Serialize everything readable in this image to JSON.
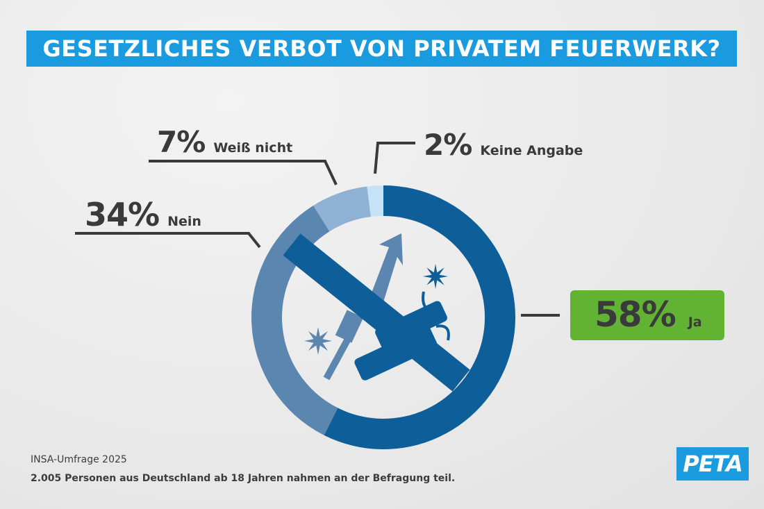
{
  "title": "GESETZLICHES VERBOT VON PRIVATEM FEUERWERK?",
  "chart_data": {
    "type": "pie",
    "style": "donut",
    "title": "GESETZLICHES VERBOT VON PRIVATEM FEUERWERK?",
    "slices": [
      {
        "label": "Ja",
        "value": 58,
        "value_label": "58%",
        "color": "#0e5f99"
      },
      {
        "label": "Nein",
        "value": 34,
        "value_label": "34%",
        "color": "#5b86b0"
      },
      {
        "label": "Weiß nicht",
        "value": 7,
        "value_label": "7%",
        "color": "#8fb2d4"
      },
      {
        "label": "Keine Angabe",
        "value": 2,
        "value_label": "2%",
        "color": "#c5e2f6"
      }
    ],
    "start": "12 o'clock",
    "direction": "clockwise",
    "highlight_color": "#62b233",
    "center_icon": "no-fireworks-icon"
  },
  "footer": {
    "source": "INSA-Umfrage 2025",
    "note": "2.005 Personen aus Deutschland ab 18 Jahren nahmen an der Befragung teil."
  },
  "logo": {
    "text": "PETA",
    "color": "#1a9be0"
  }
}
